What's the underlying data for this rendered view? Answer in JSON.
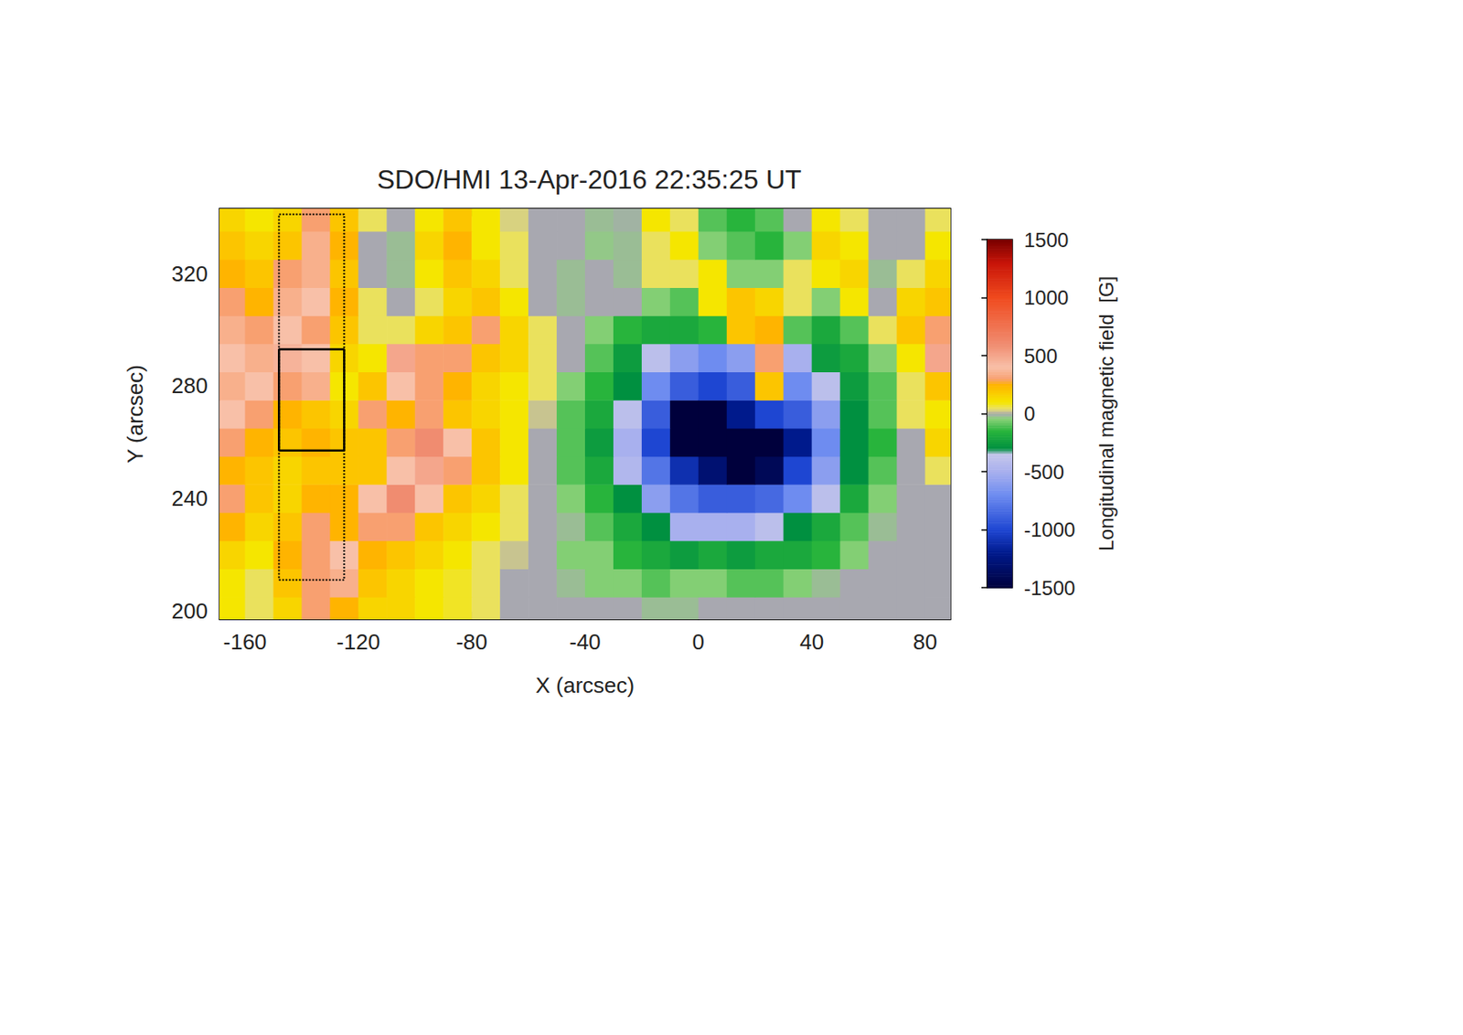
{
  "chart_data": {
    "type": "heatmap",
    "title": "SDO/HMI 13-Apr-2016 22:35:25 UT",
    "x_label": "X (arcsec)",
    "y_label": "Y (arcsec)",
    "xlim": [
      -169,
      89
    ],
    "xticks": [
      -160,
      -120,
      -80,
      -40,
      0,
      40,
      80
    ],
    "ylim": [
      197,
      343
    ],
    "yticks": [
      200,
      240,
      280,
      320
    ],
    "x": [
      -165,
      -155,
      -145,
      -135,
      -125,
      -115,
      -105,
      -95,
      -85,
      -75,
      -65,
      -55,
      -45,
      -35,
      -25,
      -15,
      -5,
      5,
      15,
      25,
      35,
      45,
      55,
      65,
      75,
      85
    ],
    "y": [
      200,
      210,
      220,
      230,
      240,
      250,
      260,
      270,
      280,
      290,
      300,
      310,
      320,
      330,
      340
    ],
    "cells": [
      [
        100,
        50,
        150,
        300,
        250,
        150,
        150,
        100,
        80,
        50,
        0,
        0,
        0,
        0,
        0,
        -20,
        -20,
        0,
        0,
        0,
        0,
        0,
        0,
        0,
        0,
        0
      ],
      [
        100,
        50,
        200,
        300,
        350,
        200,
        150,
        100,
        80,
        50,
        0,
        0,
        -20,
        -50,
        -50,
        -100,
        -50,
        -50,
        -100,
        -100,
        -50,
        -20,
        0,
        0,
        0,
        0
      ],
      [
        150,
        100,
        250,
        300,
        400,
        250,
        200,
        150,
        100,
        50,
        20,
        0,
        -50,
        -50,
        -150,
        -200,
        -250,
        -200,
        -250,
        -200,
        -200,
        -150,
        -50,
        0,
        0,
        0
      ],
      [
        250,
        150,
        200,
        300,
        250,
        300,
        300,
        200,
        150,
        100,
        50,
        0,
        -20,
        -100,
        -200,
        -300,
        -500,
        -500,
        -500,
        -400,
        -300,
        -200,
        -100,
        -20,
        0,
        0
      ],
      [
        300,
        200,
        150,
        250,
        250,
        400,
        600,
        400,
        200,
        150,
        50,
        0,
        -50,
        -150,
        -300,
        -600,
        -800,
        -900,
        -900,
        -850,
        -700,
        -400,
        -200,
        -50,
        0,
        0
      ],
      [
        250,
        200,
        150,
        200,
        200,
        200,
        400,
        500,
        300,
        200,
        100,
        0,
        -100,
        -200,
        -450,
        -800,
        -1100,
        -1300,
        -1500,
        -1400,
        -1000,
        -600,
        -300,
        -100,
        0,
        50
      ],
      [
        300,
        250,
        200,
        250,
        200,
        200,
        300,
        600,
        400,
        200,
        100,
        0,
        -100,
        -250,
        -500,
        -1000,
        -1500,
        -1500,
        -1500,
        -1500,
        -1200,
        -700,
        -300,
        -150,
        0,
        150
      ],
      [
        400,
        300,
        250,
        200,
        150,
        300,
        250,
        300,
        200,
        150,
        100,
        20,
        -100,
        -200,
        -400,
        -900,
        -1500,
        -1500,
        -1200,
        -1000,
        -900,
        -600,
        -300,
        -100,
        50,
        100
      ],
      [
        350,
        400,
        300,
        350,
        100,
        200,
        400,
        300,
        250,
        150,
        100,
        50,
        -50,
        -150,
        -300,
        -700,
        -900,
        -1000,
        -900,
        200,
        -700,
        -400,
        -250,
        -100,
        50,
        200
      ],
      [
        400,
        350,
        450,
        400,
        150,
        100,
        500,
        300,
        300,
        200,
        150,
        50,
        0,
        -100,
        -250,
        -400,
        -600,
        -700,
        -600,
        300,
        -500,
        -250,
        -200,
        -50,
        100,
        500
      ],
      [
        350,
        300,
        400,
        300,
        200,
        50,
        50,
        150,
        200,
        300,
        150,
        50,
        0,
        -50,
        -150,
        -200,
        -200,
        -150,
        200,
        250,
        -100,
        -200,
        -100,
        50,
        200,
        300
      ],
      [
        300,
        250,
        350,
        400,
        250,
        50,
        0,
        50,
        150,
        200,
        100,
        0,
        -20,
        0,
        0,
        -50,
        -100,
        100,
        200,
        150,
        50,
        -50,
        100,
        0,
        150,
        200
      ],
      [
        250,
        200,
        300,
        350,
        200,
        0,
        -20,
        100,
        200,
        150,
        50,
        0,
        -20,
        0,
        -20,
        50,
        50,
        100,
        -50,
        -50,
        50,
        100,
        150,
        -20,
        50,
        150
      ],
      [
        200,
        150,
        200,
        350,
        250,
        0,
        -20,
        150,
        250,
        100,
        50,
        0,
        0,
        -30,
        -20,
        50,
        100,
        -50,
        -100,
        -150,
        -50,
        150,
        100,
        0,
        0,
        100
      ],
      [
        150,
        100,
        150,
        300,
        200,
        50,
        0,
        100,
        200,
        100,
        30,
        0,
        0,
        -20,
        -10,
        100,
        50,
        -100,
        -150,
        -100,
        0,
        100,
        50,
        0,
        0,
        50
      ]
    ],
    "colorbar": {
      "label": "Longitudinal magnetic field  [G]",
      "range": [
        -1500,
        1500
      ],
      "ticks": [
        -1500,
        -1000,
        -500,
        0,
        500,
        1000,
        1500
      ]
    },
    "boxes": [
      {
        "x": [
          -148,
          -125
        ],
        "y": [
          257,
          293
        ],
        "line_style": "solid"
      },
      {
        "x": [
          -148,
          -125
        ],
        "y": [
          211,
          341
        ],
        "line_style": "dotted"
      }
    ]
  }
}
